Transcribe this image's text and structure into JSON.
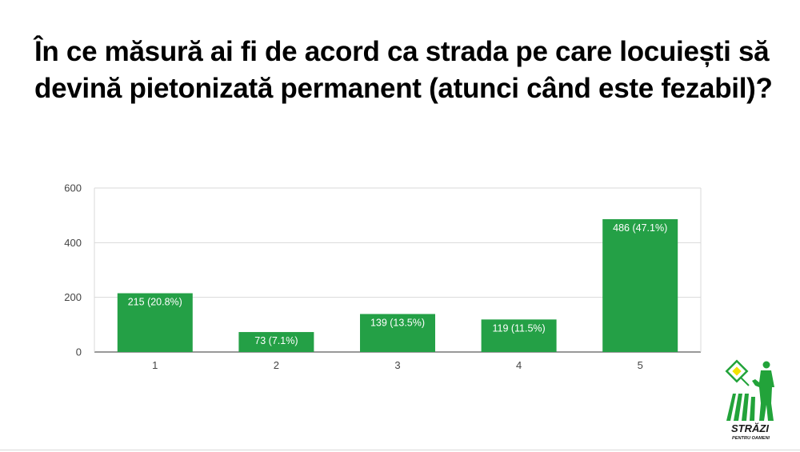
{
  "title": "În ce măsură ai fi de acord ca strada pe care locuiești să devină pietonizată permanent (atunci când este fezabil)?",
  "chart_data": {
    "type": "bar",
    "categories": [
      "1",
      "2",
      "3",
      "4",
      "5"
    ],
    "values": [
      215,
      73,
      139,
      119,
      486
    ],
    "data_labels": [
      "215 (20.8%)",
      "73 (7.1%)",
      "139 (13.5%)",
      "119 (11.5%)",
      "486 (47.1%)"
    ],
    "yticks": [
      0,
      200,
      400,
      600
    ],
    "ylim": [
      0,
      600
    ],
    "grid": true,
    "bar_color": "#24a046"
  },
  "logo": {
    "text_main": "STRĂZI",
    "text_sub": "PENTRU OAMENI",
    "color": "#22a33a",
    "accent": "#f2e200"
  }
}
